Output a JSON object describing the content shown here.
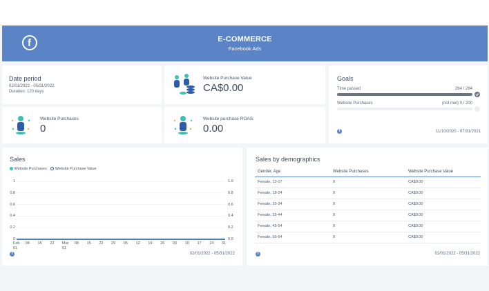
{
  "header": {
    "title": "E-COMMERCE",
    "subtitle": "Facebook Ads",
    "logo_glyph": "f"
  },
  "date_card": {
    "title": "Date period",
    "range": "02/01/2022 - 05/31/2022",
    "duration": "Duration: 120 days"
  },
  "purchase_value": {
    "label": "Website Purchase Value",
    "value": "CA$0.00"
  },
  "purchases": {
    "label": "Website Purchases",
    "value": "0"
  },
  "roas": {
    "label": "Website purchase ROAS:",
    "value": "0.00"
  },
  "goals": {
    "title": "Goals",
    "time_label": "Time passed",
    "time_value": "264 / 264",
    "time_fraction": 1.0,
    "purchases_label": "Website Purchases",
    "purchases_value": "(not met) 0 / 200",
    "purchases_fraction": 0.0,
    "date_range": "11/10/2020 - 07/31/2021"
  },
  "sales": {
    "title": "Sales",
    "legend": [
      "Website Purchases",
      "Website Purchase Value"
    ],
    "date_range": "02/01/2022 - 05/31/2022"
  },
  "chart_data": {
    "type": "line",
    "title": "Sales",
    "x": [
      "Feb 01",
      "08",
      "15",
      "22",
      "Mar 01",
      "08",
      "15",
      "22",
      "29",
      "05",
      "12",
      "19",
      "26",
      "03",
      "10",
      "17",
      "24",
      "31"
    ],
    "x_tick_labels": [
      [
        "Feb",
        "01"
      ],
      [
        "08"
      ],
      [
        "15"
      ],
      [
        "22"
      ],
      [
        "Mar",
        "01"
      ],
      [
        "08"
      ],
      [
        "15"
      ],
      [
        "22"
      ],
      [
        "29"
      ],
      [
        "05"
      ],
      [
        "12"
      ],
      [
        "19"
      ],
      [
        "26"
      ],
      [
        "03"
      ],
      [
        "10"
      ],
      [
        "17"
      ],
      [
        "24"
      ],
      [
        "31"
      ]
    ],
    "series": [
      {
        "name": "Website Purchases",
        "axis": "left",
        "values": [
          0,
          0,
          0,
          0,
          0,
          0,
          0,
          0,
          0,
          0,
          0,
          0,
          0,
          0,
          0,
          0,
          0,
          0
        ]
      },
      {
        "name": "Website Purchase Value",
        "axis": "right",
        "values": [
          0,
          0,
          0,
          0,
          0,
          0,
          0,
          0,
          0,
          0,
          0,
          0,
          0,
          0,
          0,
          0,
          0,
          0
        ]
      }
    ],
    "y_left_ticks": [
      "1",
      "0.8",
      "0.6",
      "0.4",
      "0.2",
      "0"
    ],
    "y_right_ticks": [
      "1.0",
      "0.8",
      "0.6",
      "0.4",
      "0.2",
      "0.0"
    ],
    "ylim": [
      0,
      1
    ],
    "legend_position": "top-left",
    "colors": {
      "purchases": "#3cc2b5",
      "purchase_value": "#2f5da8"
    }
  },
  "demographics": {
    "title": "Sales by demographics",
    "columns": [
      "Gender, Age",
      "Website Purchases",
      "Website Purchase Value"
    ],
    "rows": [
      [
        "Female, 13-17",
        "0",
        "CA$0.00"
      ],
      [
        "Female, 18-24",
        "0",
        "CA$0.00"
      ],
      [
        "Female, 25-34",
        "0",
        "CA$0.00"
      ],
      [
        "Female, 35-44",
        "0",
        "CA$0.00"
      ],
      [
        "Female, 45-54",
        "0",
        "CA$0.00"
      ],
      [
        "Female, 55-64",
        "0",
        "CA$0.00"
      ]
    ],
    "date_range": "02/01/2022 - 05/31/2022"
  },
  "icons": {
    "facebook": "facebook-icon",
    "people": "people-icon",
    "coins": "coins-icon",
    "person": "person-icon"
  },
  "colors": {
    "header": "#5b84c7",
    "teal": "#3cc2b5",
    "navy": "#2f5da8"
  }
}
